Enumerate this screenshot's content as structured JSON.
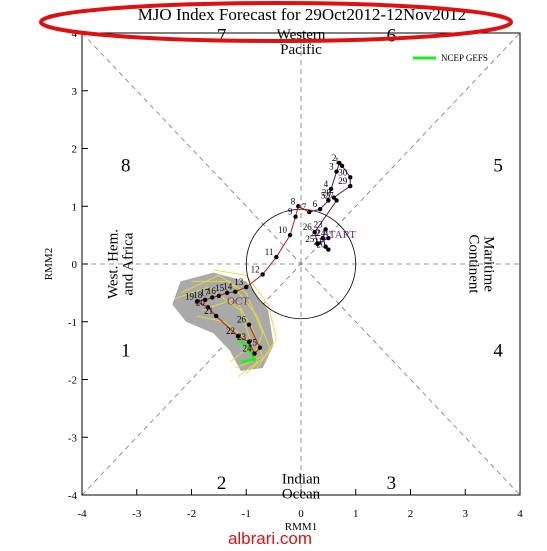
{
  "chart_data": {
    "type": "scatter",
    "title": "MJO Index Forecast for 29Oct2012-12Nov2012",
    "xlabel": "RMM1",
    "ylabel": "RMM2",
    "xlim": [
      -4,
      4
    ],
    "ylim": [
      -4,
      4
    ],
    "xticks": [
      "-4",
      "-3",
      "-2",
      "-1",
      "0",
      "1",
      "2",
      "3",
      "4"
    ],
    "yticks": [
      "-4",
      "-3",
      "-2",
      "-1",
      "0",
      "1",
      "2",
      "3",
      "4"
    ],
    "grid": false,
    "phases": [
      {
        "label": "1",
        "x": -3.2,
        "y": -1.6
      },
      {
        "label": "2",
        "x": -1.45,
        "y": -3.9
      },
      {
        "label": "3",
        "x": 1.65,
        "y": -3.9
      },
      {
        "label": "4",
        "x": 3.6,
        "y": -1.6
      },
      {
        "label": "5",
        "x": 3.6,
        "y": 1.6
      },
      {
        "label": "6",
        "x": 1.65,
        "y": 3.85
      },
      {
        "label": "7",
        "x": -1.45,
        "y": 3.85
      },
      {
        "label": "8",
        "x": -3.2,
        "y": 1.6
      }
    ],
    "regions": [
      {
        "lines": [
          "Western",
          "Pacific"
        ],
        "x": 0,
        "y": 3.9,
        "rotate": 0
      },
      {
        "lines": [
          "Indian",
          "Ocean"
        ],
        "x": 0,
        "y": -3.8,
        "rotate": 0
      },
      {
        "lines": [
          "West. Hem.",
          "and Africa"
        ],
        "x": -3.35,
        "y": 0,
        "rotate": -90
      },
      {
        "lines": [
          "Maritime",
          "Continent"
        ],
        "x": 3.35,
        "y": 0,
        "rotate": 90
      }
    ],
    "legend": {
      "label": "NCEP GEFS",
      "color": "#22ee22",
      "position": "top-right"
    },
    "observed": {
      "name": "",
      "color": "#cc1111",
      "start_label": "START",
      "points": [
        {
          "d": "8",
          "x": -0.05,
          "y": 1.0
        },
        {
          "d": "9",
          "x": -0.1,
          "y": 0.82
        },
        {
          "d": "10",
          "x": -0.2,
          "y": 0.5
        },
        {
          "d": "11",
          "x": -0.45,
          "y": 0.12
        },
        {
          "d": "12",
          "x": -0.7,
          "y": -0.18
        },
        {
          "d": "13",
          "x": -1.0,
          "y": -0.4
        },
        {
          "d": "14",
          "x": -1.2,
          "y": -0.48
        },
        {
          "d": "15",
          "x": -1.35,
          "y": -0.5
        },
        {
          "d": "16",
          "x": -1.5,
          "y": -0.55
        },
        {
          "d": "17",
          "x": -1.62,
          "y": -0.58
        },
        {
          "d": "18",
          "x": -1.75,
          "y": -0.62
        },
        {
          "d": "19",
          "x": -1.9,
          "y": -0.65
        },
        {
          "d": "20",
          "x": -1.7,
          "y": -0.75
        },
        {
          "d": "21",
          "x": -1.55,
          "y": -0.9
        },
        {
          "d": "22",
          "x": -1.15,
          "y": -1.25
        },
        {
          "d": "23",
          "x": -0.95,
          "y": -1.35
        },
        {
          "d": "24",
          "x": -0.85,
          "y": -1.55
        },
        {
          "d": "25",
          "x": -0.75,
          "y": -1.45
        },
        {
          "d": "26",
          "x": -0.95,
          "y": -1.05
        }
      ]
    },
    "start_track": {
      "points": [
        {
          "d": "20",
          "x": 0.5,
          "y": 0.25
        },
        {
          "d": "21",
          "x": 0.45,
          "y": 0.3
        },
        {
          "d": "22",
          "x": 0.4,
          "y": 0.45
        },
        {
          "d": "23",
          "x": 0.45,
          "y": 0.6
        },
        {
          "d": "24",
          "x": 0.5,
          "y": 0.45
        },
        {
          "d": "25",
          "x": 0.3,
          "y": 0.35
        },
        {
          "d": "26",
          "x": 0.25,
          "y": 0.55
        },
        {
          "d": "27",
          "x": 0.65,
          "y": 1.1
        },
        {
          "d": "28",
          "x": 0.6,
          "y": 1.15
        },
        {
          "d": "29",
          "x": 0.9,
          "y": 1.35
        },
        {
          "d": "30",
          "x": 0.9,
          "y": 1.5
        },
        {
          "d": "1",
          "x": 0.75,
          "y": 1.7
        },
        {
          "d": "2",
          "x": 0.7,
          "y": 1.75
        },
        {
          "d": "3",
          "x": 0.65,
          "y": 1.6
        },
        {
          "d": "4",
          "x": 0.55,
          "y": 1.3
        },
        {
          "d": "5",
          "x": 0.5,
          "y": 1.1
        },
        {
          "d": "6",
          "x": 0.35,
          "y": 0.95
        },
        {
          "d": "7",
          "x": 0.15,
          "y": 0.9
        }
      ]
    },
    "forecast_label": "OCT"
  },
  "watermark": "albrari.com"
}
